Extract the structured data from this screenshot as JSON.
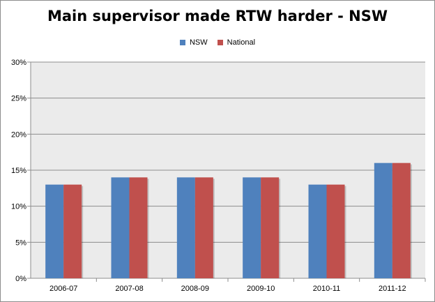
{
  "chart_data": {
    "type": "bar",
    "title": "Main supervisor made RTW harder - NSW",
    "categories": [
      "2006-07",
      "2007-08",
      "2008-09",
      "2009-10",
      "2010-11",
      "2011-12"
    ],
    "series": [
      {
        "name": "NSW",
        "color": "#4f81bd",
        "values": [
          13,
          14,
          14,
          14,
          13,
          16
        ]
      },
      {
        "name": "National",
        "color": "#c0504d",
        "values": [
          13,
          14,
          14,
          14,
          13,
          16
        ]
      }
    ],
    "ylim": [
      0,
      30
    ],
    "yticks": [
      "0%",
      "5%",
      "10%",
      "15%",
      "20%",
      "25%",
      "30%"
    ],
    "grid": true,
    "legend_position": "top"
  }
}
